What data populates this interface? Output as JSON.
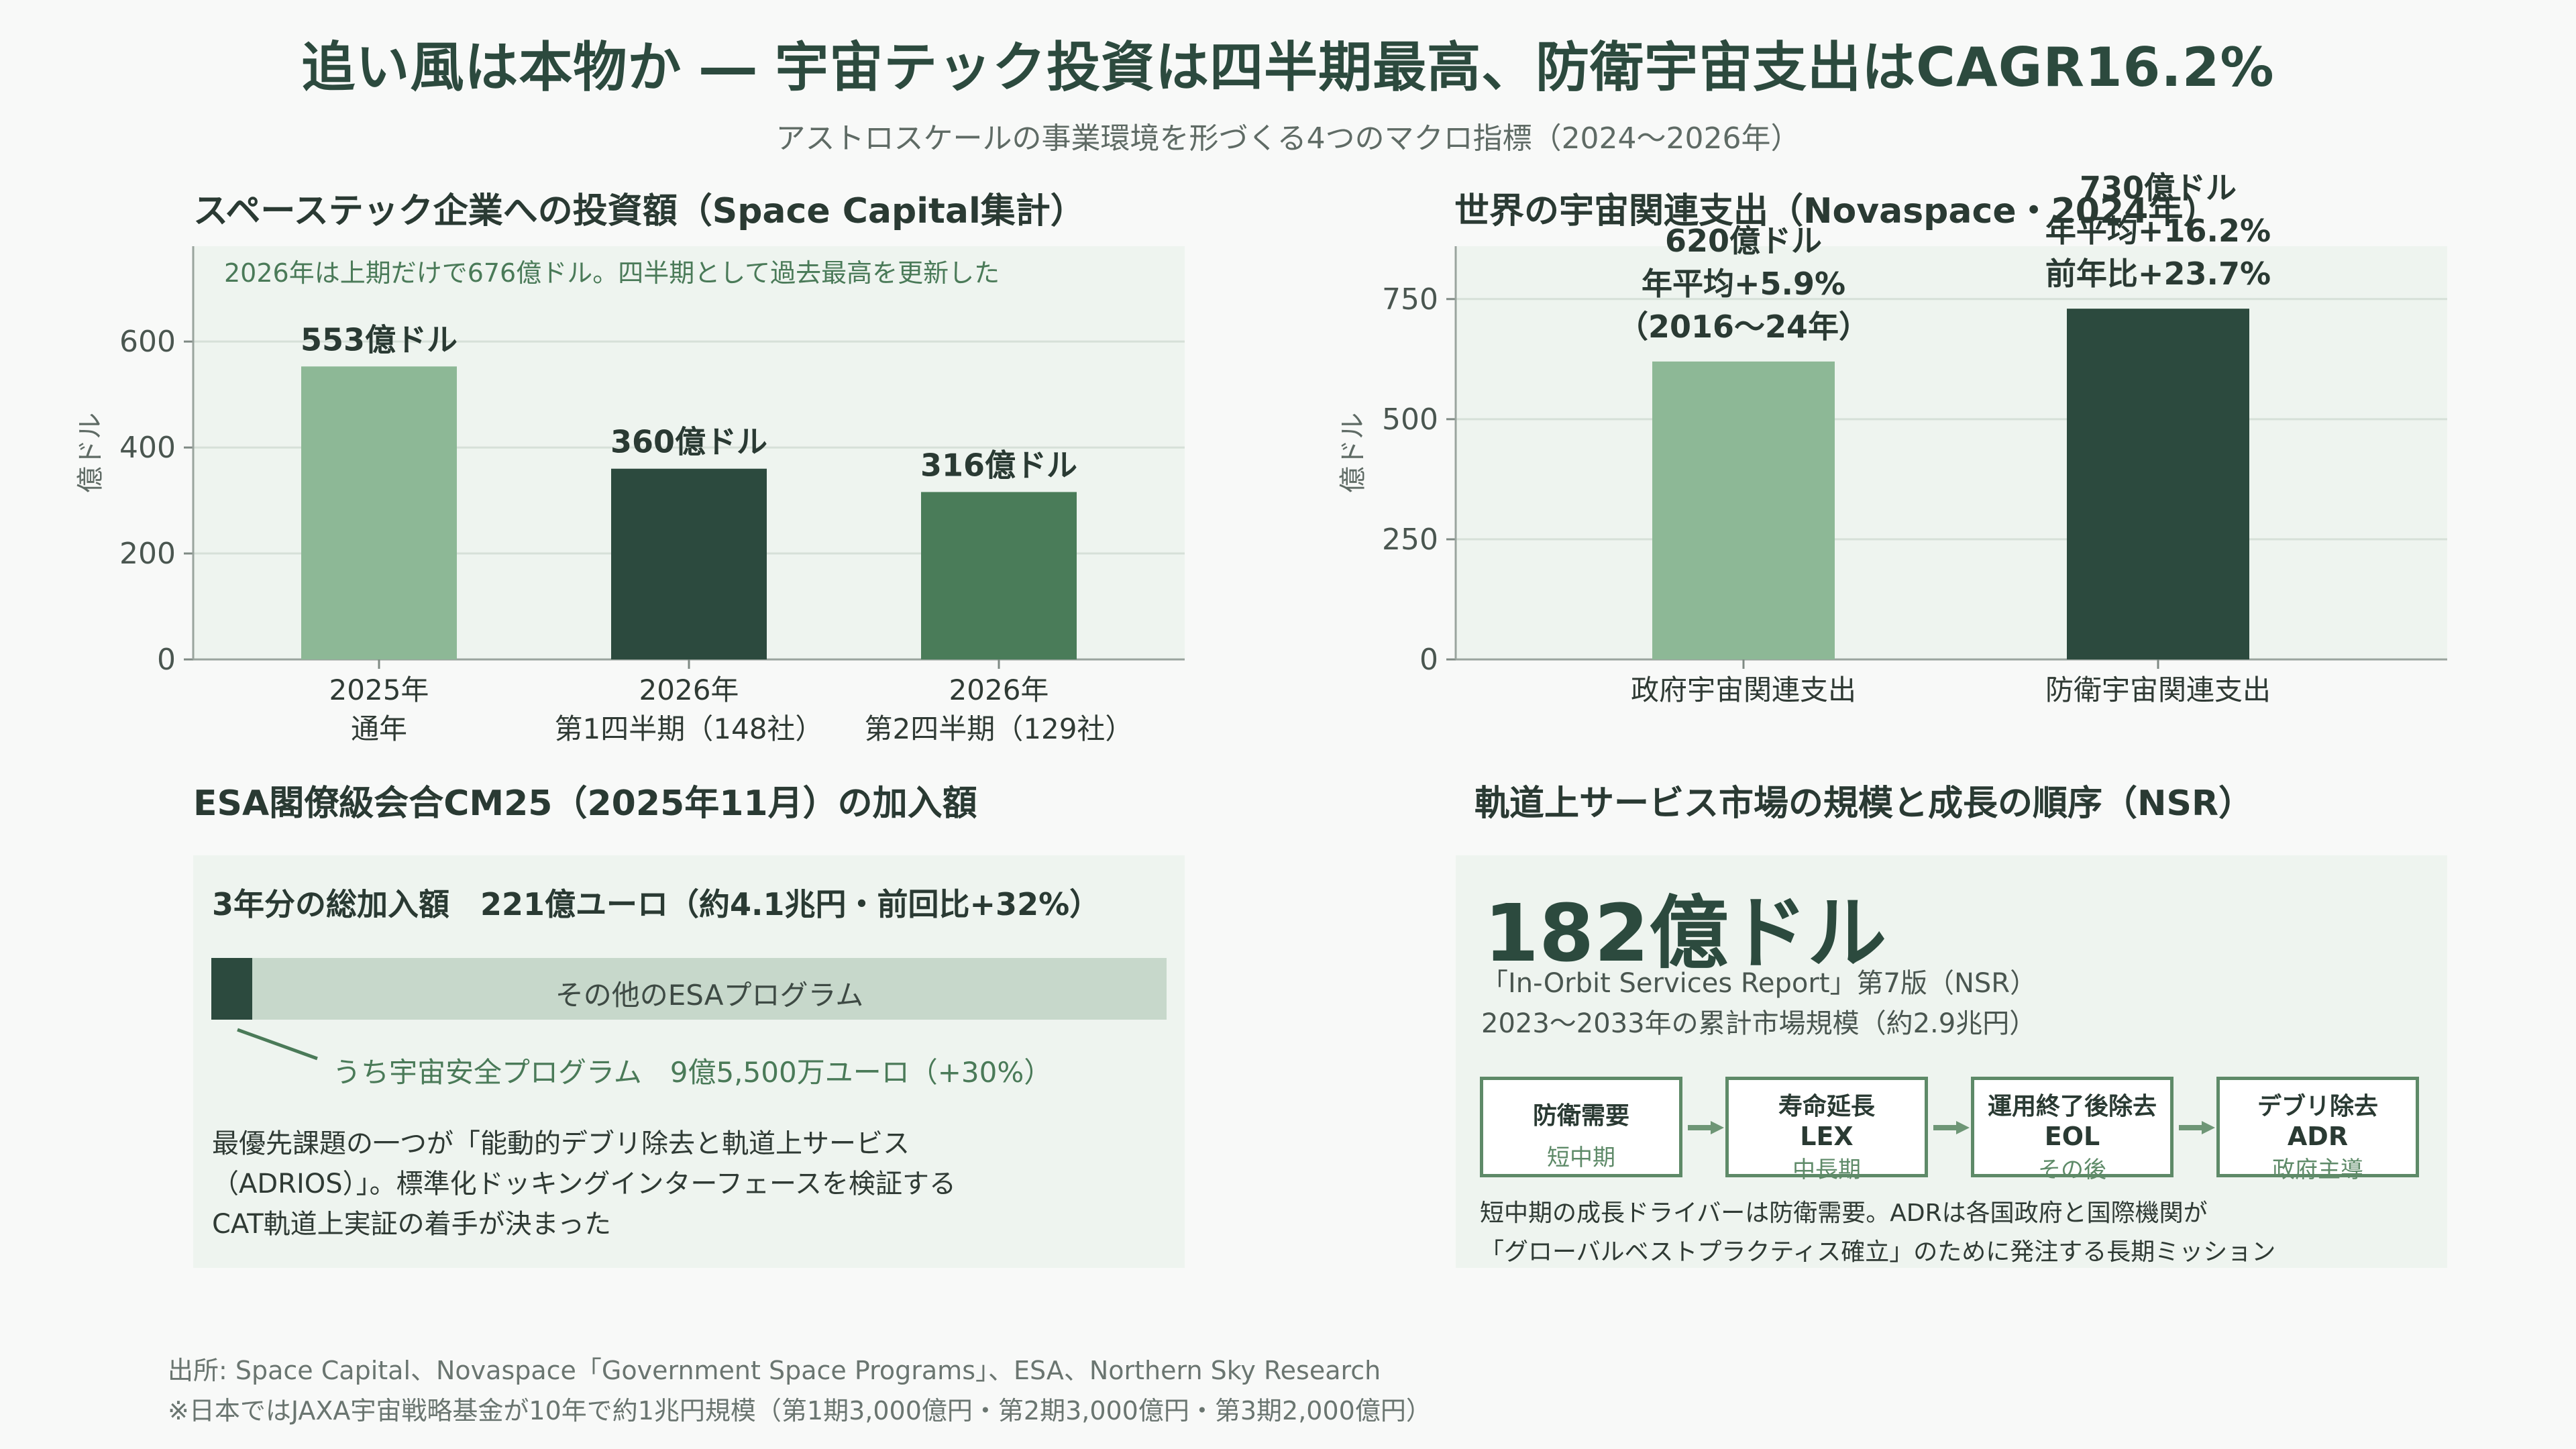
{
  "header": {
    "title": "追い風は本物か ― 宇宙テック投資は四半期最高、防衛宇宙支出はCAGR16.2%",
    "subtitle": "アストロスケールの事業環境を形づくる4つのマクロ指標（2024〜2026年）"
  },
  "panels": {
    "investment_title": "スペーステック企業への投資額（Space Capital集計）",
    "spending_title": "世界の宇宙関連支出（Novaspace・2024年）",
    "esa_title": "ESA閣僚級会合CM25（2025年11月）の加入額",
    "nsr_title": "軌道上サービス市場の規模と成長の順序（NSR）"
  },
  "chart_data": [
    {
      "type": "bar",
      "annotation": "2026年は上期だけで676億ドル。四半期として過去最高を更新した",
      "ylabel": "億ドル",
      "ylim": [
        0,
        780
      ],
      "yticks": [
        0,
        200,
        400,
        600
      ],
      "categories": [
        [
          "2025年",
          "通年"
        ],
        [
          "2026年",
          "第1四半期（148社）"
        ],
        [
          "2026年",
          "第2四半期（129社）"
        ]
      ],
      "values": [
        553,
        360,
        316
      ],
      "data_labels": [
        [
          "553億ドル"
        ],
        [
          "360億ドル"
        ],
        [
          "316億ドル"
        ]
      ],
      "colors": [
        "#8db896",
        "#2c4a3e",
        "#4a7c59"
      ],
      "grid": true
    },
    {
      "type": "bar",
      "ylabel": "億ドル",
      "ylim": [
        0,
        860
      ],
      "yticks": [
        0,
        250,
        500,
        750
      ],
      "categories": [
        [
          "政府宇宙関連支出"
        ],
        [
          "防衛宇宙関連支出"
        ]
      ],
      "values": [
        620,
        730
      ],
      "data_labels": [
        [
          "620億ドル",
          "年平均+5.9%",
          "（2016〜24年）"
        ],
        [
          "730億ドル",
          "年平均+16.2%",
          "前年比+23.7%"
        ]
      ],
      "colors": [
        "#8db896",
        "#2c4a3e"
      ],
      "grid": true
    }
  ],
  "esa": {
    "total_label": "3年分の総加入額　221億ユーロ（約4.1兆円・前回比+32%）",
    "safety_share": 0.043,
    "other_label": "その他のESAプログラム",
    "callout": "うち宇宙安全プログラム　9億5,500万ユーロ（+30%）",
    "desc_lines": [
      "最優先課題の一つが「能動的デブリ除去と軌道上サービス",
      "（ADRIOS）」。標準化ドッキングインターフェースを検証する",
      "CAT軌道上実証の着手が決まった"
    ]
  },
  "nsr": {
    "big_value": "182億ドル",
    "report_line": "「In-Orbit Services Report」第7版（NSR）",
    "market_line": "2023〜2033年の累計市場規模（約2.9兆円）",
    "stages": [
      {
        "name": "防衛需要",
        "abbr": "",
        "timing": "短中期"
      },
      {
        "name": "寿命延長",
        "abbr": "LEX",
        "timing": "中長期"
      },
      {
        "name": "運用終了後除去",
        "abbr": "EOL",
        "timing": "その後"
      },
      {
        "name": "デブリ除去",
        "abbr": "ADR",
        "timing": "政府主導"
      }
    ],
    "desc_lines": [
      "短中期の成長ドライバーは防衛需要。ADRは各国政府と国際機関が",
      "「グローバルベストプラクティス確立」のために発注する長期ミッション"
    ]
  },
  "footer": {
    "source": "出所: Space Capital、Novaspace「Government Space Programs」、ESA、Northern Sky Research",
    "note": "※日本ではJAXA宇宙戦略基金が10年で約1兆円規模（第1期3,000億円・第2期3,000億円・第3期2,000億円）"
  }
}
